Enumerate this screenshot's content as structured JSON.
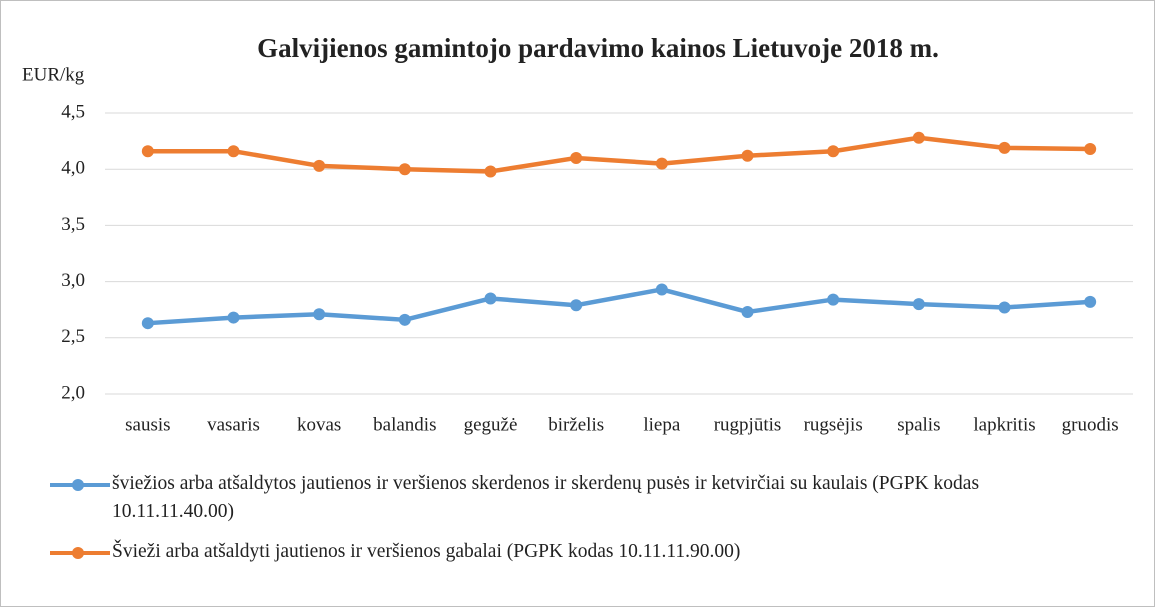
{
  "chart_data": {
    "type": "line",
    "title": "Galvijienos gamintojo  pardavimo  kainos Lietuvoje 2018 m.",
    "y_label": "EUR/kg",
    "categories": [
      "sausis",
      "vasaris",
      "kovas",
      "balandis",
      "gegužė",
      "birželis",
      "liepa",
      "rugpjūtis",
      "rugsėjis",
      "spalis",
      "lapkritis",
      "gruodis"
    ],
    "series": [
      {
        "name": "šviežios arba atšaldytos jautienos ir veršienos skerdenos ir skerdenų pusės ir ketvirčiai su kaulais (PGPK kodas 10.11.11.40.00)",
        "color": "#5b9bd5",
        "values": [
          2.63,
          2.68,
          2.71,
          2.66,
          2.85,
          2.79,
          2.93,
          2.73,
          2.84,
          2.8,
          2.77,
          2.82
        ]
      },
      {
        "name": "Švieži arba atšaldyti jautienos ir veršienos gabalai (PGPK kodas 10.11.11.90.00)",
        "color": "#ed7d31",
        "values": [
          4.16,
          4.16,
          4.03,
          4.0,
          3.98,
          4.1,
          4.05,
          4.12,
          4.16,
          4.28,
          4.19,
          4.18
        ]
      }
    ],
    "ylim": [
      2.0,
      4.5
    ],
    "yticks": [
      {
        "value": 2.0,
        "label": "2,0"
      },
      {
        "value": 2.5,
        "label": "2,5"
      },
      {
        "value": 3.0,
        "label": "3,0"
      },
      {
        "value": 3.5,
        "label": "3,5"
      },
      {
        "value": 4.0,
        "label": "4,0"
      },
      {
        "value": 4.5,
        "label": "4,5"
      }
    ],
    "grid": true,
    "legend": "bottom"
  }
}
